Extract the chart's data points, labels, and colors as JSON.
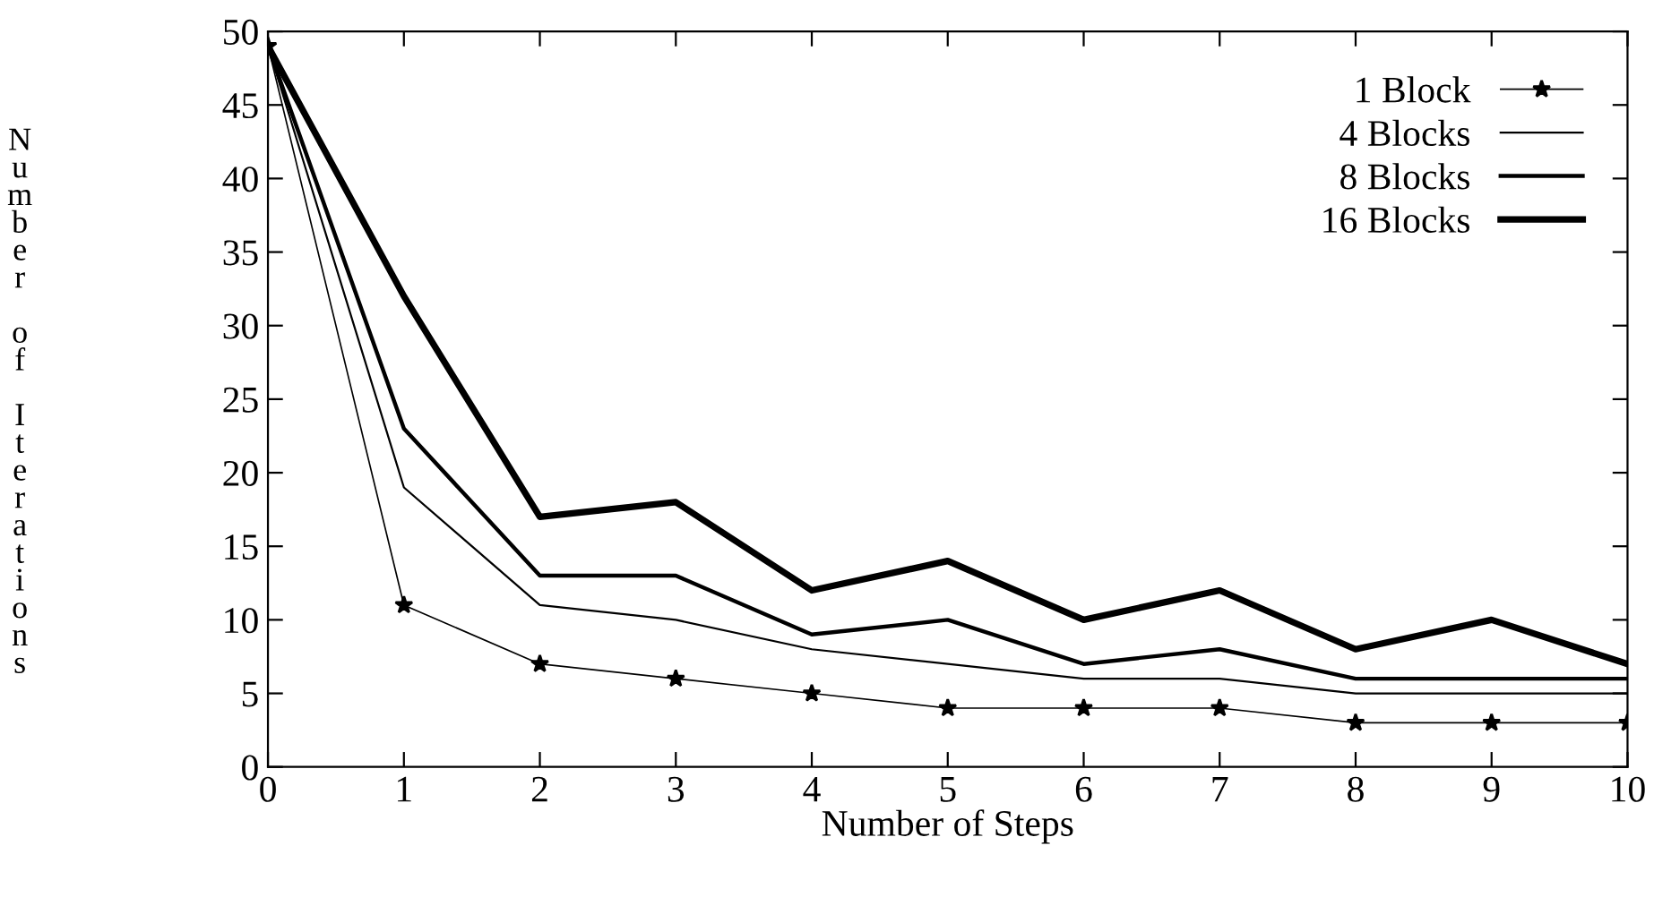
{
  "chart_data": {
    "type": "line",
    "xlabel": "Number of Steps",
    "ylabel": "Number of Iterations",
    "x": [
      0,
      1,
      2,
      3,
      4,
      5,
      6,
      7,
      8,
      9,
      10
    ],
    "xlim": [
      0,
      10
    ],
    "xticks": [
      0,
      1,
      2,
      3,
      4,
      5,
      6,
      7,
      8,
      9,
      10
    ],
    "ylim": [
      0,
      50
    ],
    "yticks": [
      0,
      5,
      10,
      15,
      20,
      25,
      30,
      35,
      40,
      45,
      50
    ],
    "grid": false,
    "legend": "top right",
    "series": [
      {
        "name": "1 Block",
        "color": "#000000",
        "marker": "star",
        "values": [
          49,
          11,
          7,
          6,
          5,
          4,
          4,
          4,
          3,
          3,
          3
        ]
      },
      {
        "name": "4 Blocks",
        "color": "#000000",
        "marker": "none",
        "values": [
          49,
          19,
          11,
          10,
          8,
          7,
          6,
          6,
          5,
          5,
          5
        ]
      },
      {
        "name": "8 Blocks",
        "color": "#000000",
        "marker": "none",
        "values": [
          49,
          23,
          13,
          13,
          9,
          10,
          7,
          8,
          6,
          6,
          6
        ]
      },
      {
        "name": "16 Blocks",
        "color": "#000000",
        "marker": "none",
        "values": [
          49,
          32,
          17,
          18,
          12,
          14,
          10,
          12,
          8,
          10,
          7
        ]
      }
    ]
  }
}
